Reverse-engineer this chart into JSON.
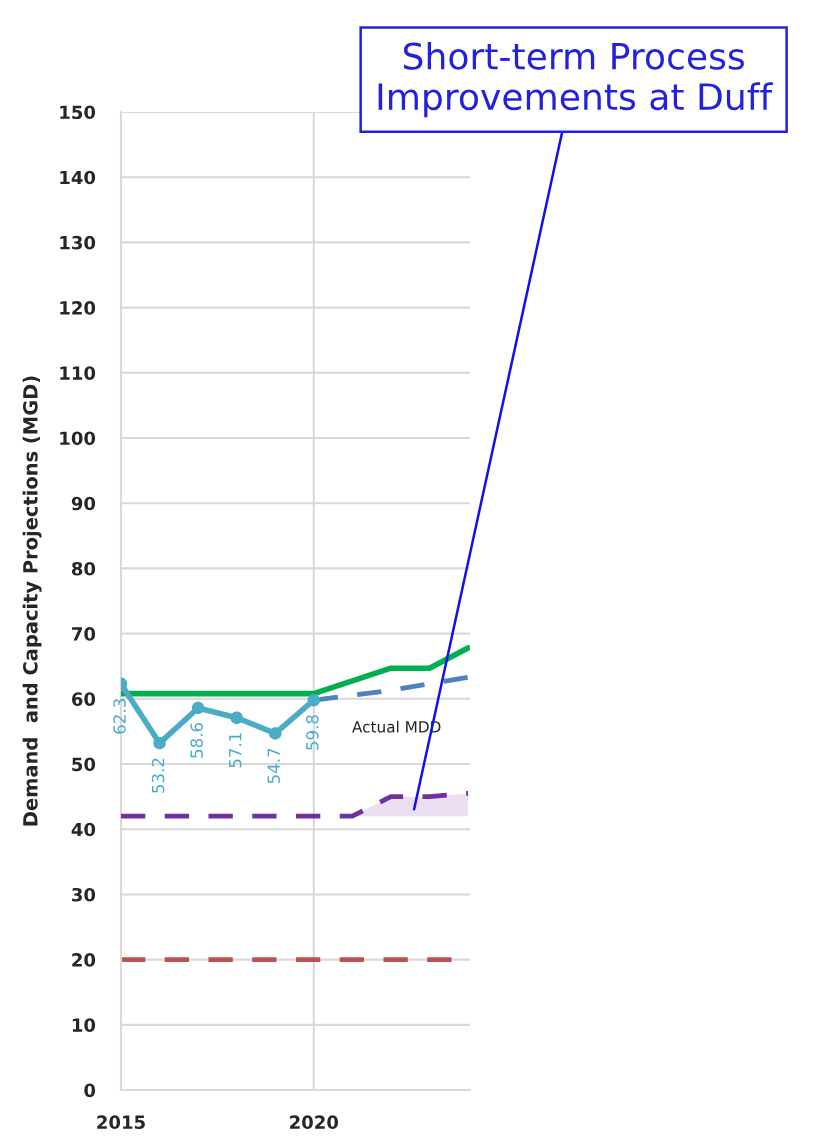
{
  "chart_data": {
    "type": "line",
    "ylabel": "Demand  and Capacity Projections (MGD)",
    "xlim": [
      2015,
      2024.05
    ],
    "xticks": [
      2015,
      2020
    ],
    "ylim": [
      0,
      150
    ],
    "yticks": [
      0,
      10,
      20,
      30,
      40,
      50,
      60,
      70,
      80,
      90,
      100,
      110,
      120,
      130,
      140,
      150
    ],
    "grid": true,
    "series": [
      {
        "color": "#00b050",
        "line_style": "solid",
        "marker": "none",
        "x": [
          2015,
          2020,
          2022,
          2023,
          2024
        ],
        "values": [
          60.8,
          60.8,
          64.7,
          64.7,
          67.8
        ]
      },
      {
        "color": "#4f81bd",
        "line_style": "dashed",
        "marker": "none",
        "x": [
          2020,
          2022,
          2024
        ],
        "values": [
          59.8,
          61.3,
          63.3
        ]
      },
      {
        "color": "#7030a0",
        "line_style": "dashed",
        "marker": "none",
        "x": [
          2015,
          2021,
          2022,
          2023,
          2024
        ],
        "values": [
          42,
          42,
          45,
          45,
          45.5
        ],
        "lower": [
          null,
          42,
          42,
          42,
          42
        ],
        "upper": [
          null,
          42,
          45,
          45,
          45.5
        ]
      },
      {
        "color": "#4bacc6",
        "line_style": "solid",
        "marker": "circle",
        "x": [
          2015,
          2016,
          2017,
          2018,
          2019,
          2020
        ],
        "values": [
          62.3,
          53.2,
          58.6,
          57.1,
          54.7,
          59.8
        ],
        "value_labels": [
          "62.3",
          "53.2",
          "58.6",
          "57.1",
          "54.7",
          "59.8"
        ]
      }
    ],
    "ref_lines": [
      {
        "axis": "y",
        "value": 20,
        "color": "#c0504d",
        "line_style": "dashed"
      }
    ],
    "annotations": [
      "Actual MDD",
      "Short-term Process Improvements at Duff"
    ]
  }
}
